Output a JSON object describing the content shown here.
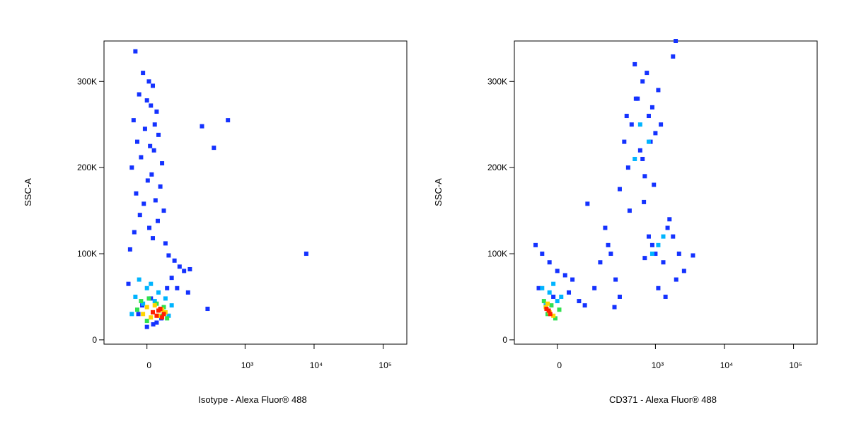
{
  "chart_data": [
    {
      "type": "scatter",
      "x_label": "Isotype - Alexa Fluor® 488",
      "y_label": "SSC-A",
      "xscale": "biexponential",
      "xlim": [
        -150,
        220000
      ],
      "ylim": [
        -5000,
        347000
      ],
      "xticks": [
        0,
        {
          "value": 1000,
          "label": "10³"
        },
        {
          "value": 10000,
          "label": "10⁴"
        },
        {
          "value": 100000,
          "label": "10⁵"
        }
      ],
      "yticks": [
        0,
        {
          "value": 100000,
          "label": "100K"
        },
        {
          "value": 200000,
          "label": "200K"
        },
        {
          "value": 300000,
          "label": "300K"
        }
      ],
      "series": [
        {
          "color": "#1432ff",
          "x": [
            -30,
            -10,
            5,
            15,
            -20,
            0,
            10,
            25,
            -35,
            20,
            -5,
            30,
            -25,
            8,
            18,
            -15,
            40,
            -40,
            12,
            2,
            35,
            -28,
            22,
            -8,
            45,
            -18,
            28,
            6,
            -33,
            15,
            50,
            -45,
            60,
            80,
            100,
            120,
            70,
            -50,
            90,
            140,
            232,
            563,
            350,
            7700,
            282,
            150,
            10,
            -12,
            25,
            0,
            38,
            -22,
            16,
            55
          ],
          "values": [
            335000,
            310000,
            300000,
            295000,
            285000,
            278000,
            272000,
            265000,
            255000,
            250000,
            245000,
            238000,
            230000,
            225000,
            220000,
            212000,
            205000,
            200000,
            192000,
            185000,
            178000,
            170000,
            162000,
            158000,
            150000,
            145000,
            138000,
            130000,
            125000,
            118000,
            112000,
            105000,
            98000,
            92000,
            85000,
            80000,
            72000,
            65000,
            60000,
            55000,
            248000,
            255000,
            223000,
            100000,
            36000,
            82000,
            48000,
            40000,
            20000,
            15000,
            25000,
            30000,
            18000,
            60000
          ]
        },
        {
          "color": "#00b4ff",
          "x": [
            -20,
            10,
            30,
            -30,
            50,
            0,
            20,
            -10,
            70,
            40,
            -40,
            60
          ],
          "values": [
            70000,
            65000,
            55000,
            50000,
            48000,
            60000,
            45000,
            42000,
            40000,
            35000,
            30000,
            28000
          ]
        },
        {
          "color": "#30e050",
          "x": [
            -15,
            5,
            25,
            45,
            -25,
            15,
            35,
            55,
            0
          ],
          "values": [
            45000,
            48000,
            42000,
            38000,
            35000,
            32000,
            28000,
            25000,
            22000
          ]
        },
        {
          "color": "#ffd400",
          "x": [
            0,
            20,
            40,
            -10,
            30,
            50,
            10
          ],
          "values": [
            38000,
            40000,
            35000,
            30000,
            28000,
            32000,
            26000
          ]
        },
        {
          "color": "#ff1e00",
          "x": [
            15,
            30,
            45,
            25,
            40,
            35
          ],
          "values": [
            32000,
            34000,
            30000,
            28000,
            26000,
            36000
          ]
        }
      ]
    },
    {
      "type": "scatter",
      "x_label": "CD371 - Alexa Fluor® 488",
      "y_label": "SSC-A",
      "xscale": "biexponential",
      "xlim": [
        -150,
        220000
      ],
      "ylim": [
        -5000,
        347000
      ],
      "xticks": [
        0,
        {
          "value": 1000,
          "label": "10³"
        },
        {
          "value": 10000,
          "label": "10⁴"
        },
        {
          "value": 100000,
          "label": "10⁵"
        }
      ],
      "yticks": [
        0,
        {
          "value": 100000,
          "label": "100K"
        },
        {
          "value": 200000,
          "label": "200K"
        },
        {
          "value": 300000,
          "label": "300K"
        }
      ],
      "series": [
        {
          "color": "#1432ff",
          "x": [
            -60,
            -40,
            -20,
            0,
            20,
            40,
            -50,
            -10,
            30,
            60,
            80,
            120,
            150,
            180,
            220,
            260,
            300,
            90,
            200,
            250,
            350,
            450,
            550,
            650,
            800,
            1000,
            400,
            600,
            700,
            900,
            500,
            750,
            850,
            1100,
            300,
            420,
            680,
            950,
            1200,
            380,
            800,
            1000,
            1300,
            1600,
            2000,
            2600,
            1500,
            1100,
            900,
            700,
            1800,
            2200,
            3500,
            1400,
            1970,
            1800,
            650,
            520
          ],
          "values": [
            110000,
            100000,
            90000,
            80000,
            75000,
            70000,
            60000,
            50000,
            55000,
            45000,
            40000,
            60000,
            90000,
            130000,
            100000,
            70000,
            50000,
            158000,
            110000,
            38000,
            230000,
            250000,
            280000,
            300000,
            260000,
            240000,
            200000,
            220000,
            190000,
            270000,
            320000,
            310000,
            230000,
            290000,
            175000,
            150000,
            160000,
            180000,
            250000,
            260000,
            120000,
            100000,
            90000,
            140000,
            70000,
            80000,
            130000,
            60000,
            110000,
            95000,
            120000,
            100000,
            98000,
            50000,
            347000,
            329000,
            210000,
            280000
          ]
        },
        {
          "color": "#00b4ff",
          "x": [
            -40,
            -20,
            0,
            -30,
            10,
            -10,
            800,
            1100,
            600,
            1300,
            900,
            500
          ],
          "values": [
            60000,
            55000,
            45000,
            40000,
            50000,
            65000,
            230000,
            110000,
            250000,
            120000,
            100000,
            210000
          ]
        },
        {
          "color": "#30e050",
          "x": [
            -35,
            -15,
            5,
            -25,
            -5
          ],
          "values": [
            45000,
            40000,
            35000,
            30000,
            25000
          ]
        },
        {
          "color": "#ffd400",
          "x": [
            -30,
            -20,
            -10,
            -25
          ],
          "values": [
            38000,
            32000,
            28000,
            42000
          ]
        },
        {
          "color": "#ff1e00",
          "x": [
            -22,
            -18,
            -28
          ],
          "values": [
            34000,
            30000,
            36000
          ]
        }
      ]
    }
  ]
}
